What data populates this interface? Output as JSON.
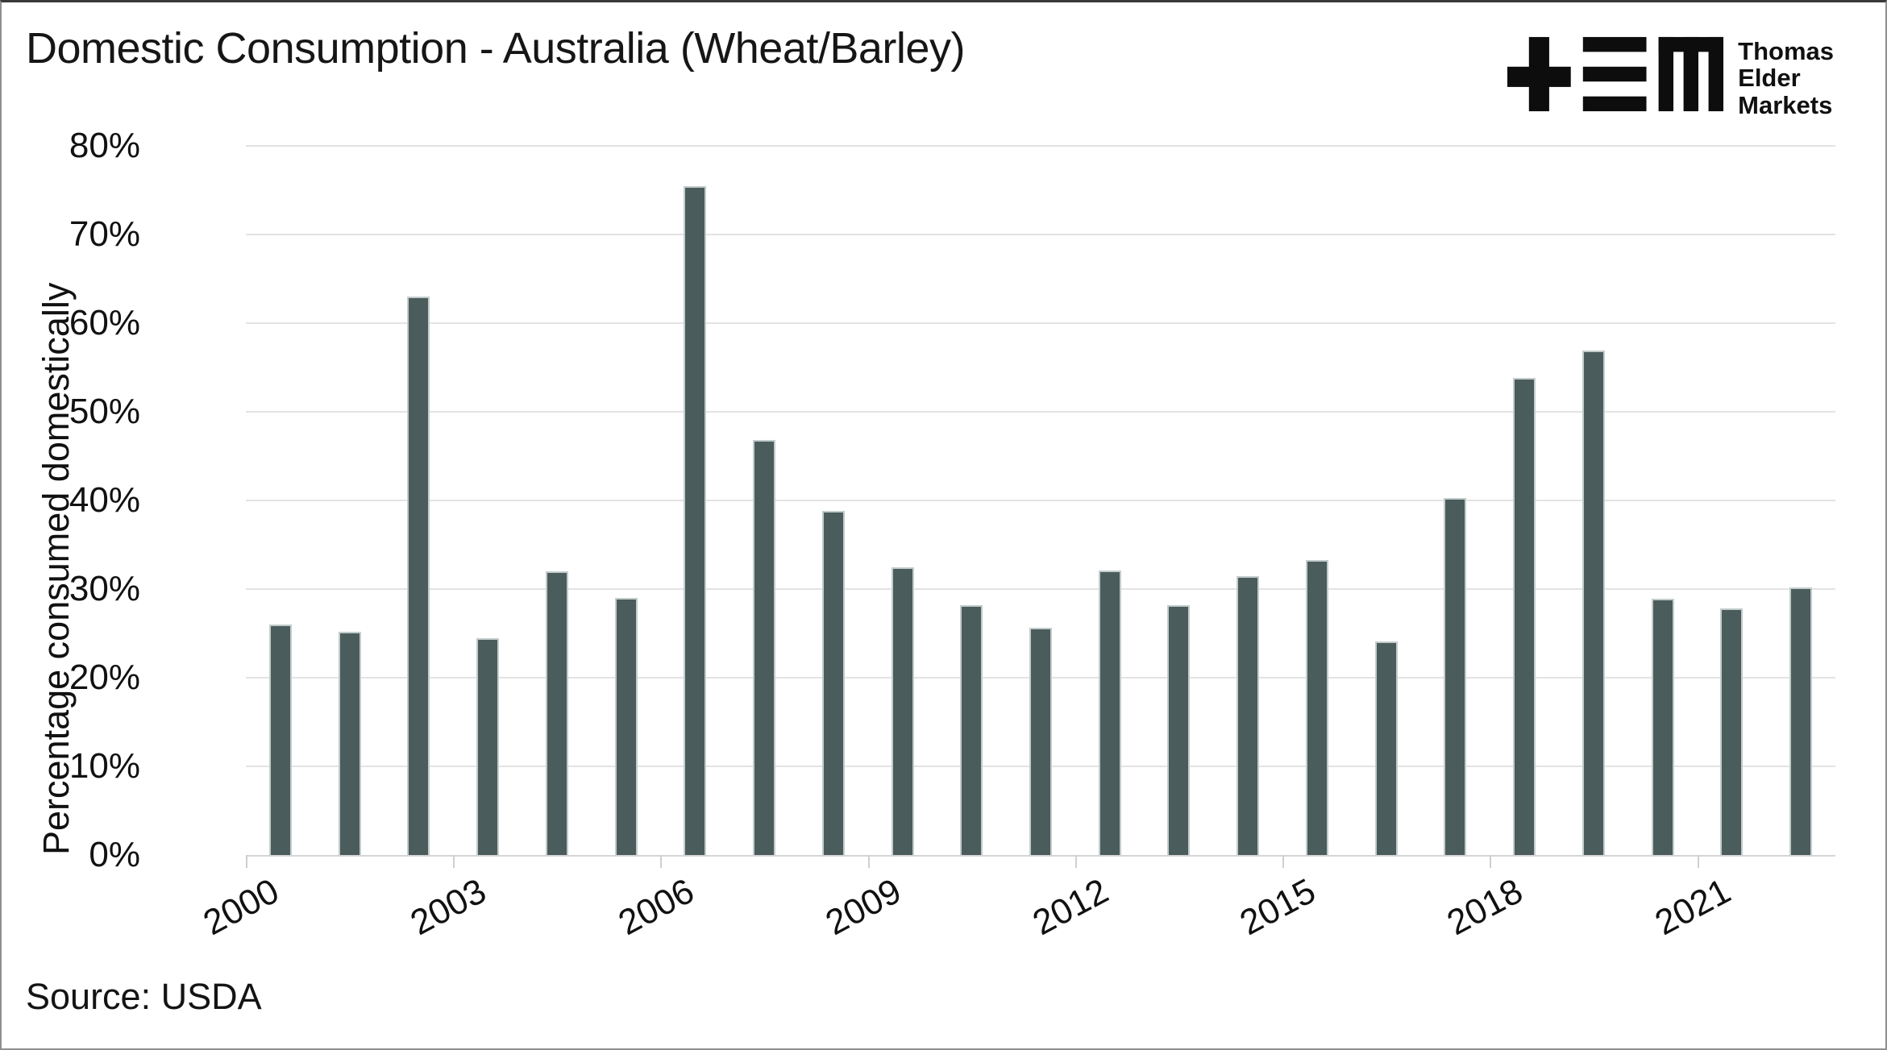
{
  "header": {
    "title": "Domestic Consumption - Australia (Wheat/Barley)"
  },
  "logo": {
    "icon": "tem-logo-mark",
    "lines": [
      "Thomas",
      "Elder",
      "Markets"
    ]
  },
  "footer": {
    "source": "Source: USDA"
  },
  "chart_data": {
    "type": "bar",
    "title": "Domestic Consumption - Australia (Wheat/Barley)",
    "xlabel": "",
    "ylabel": "Percentage consumed domestically",
    "unit": "%",
    "categories": [
      "2000",
      "2001",
      "2002",
      "2003",
      "2004",
      "2005",
      "2006",
      "2007",
      "2008",
      "2009",
      "2010",
      "2011",
      "2012",
      "2013",
      "2014",
      "2015",
      "2016",
      "2017",
      "2018",
      "2019",
      "2020",
      "2021",
      "2022"
    ],
    "values": [
      26.0,
      25.2,
      63.0,
      24.5,
      32.0,
      29.0,
      75.5,
      46.8,
      38.8,
      32.5,
      28.2,
      25.6,
      32.1,
      28.2,
      31.5,
      33.3,
      24.1,
      40.3,
      53.8,
      56.9,
      28.9,
      27.8,
      30.2
    ],
    "ylim": [
      0,
      80
    ],
    "ytick_step": 10,
    "ytick_labels": [
      "0%",
      "10%",
      "20%",
      "30%",
      "40%",
      "50%",
      "60%",
      "70%",
      "80%"
    ],
    "xtick_labels": [
      "2000",
      "2003",
      "2006",
      "2009",
      "2012",
      "2015",
      "2018",
      "2021"
    ],
    "grid": "horizontal",
    "legend": "none",
    "bar_color": "#4b5c5c",
    "bar_edge_color": "#c2cccb",
    "gridline_color": "#e3e3e3",
    "axis_line_color": "#d5d5d5",
    "tick_color": "#cfcfcf",
    "text_color": "#111111"
  }
}
